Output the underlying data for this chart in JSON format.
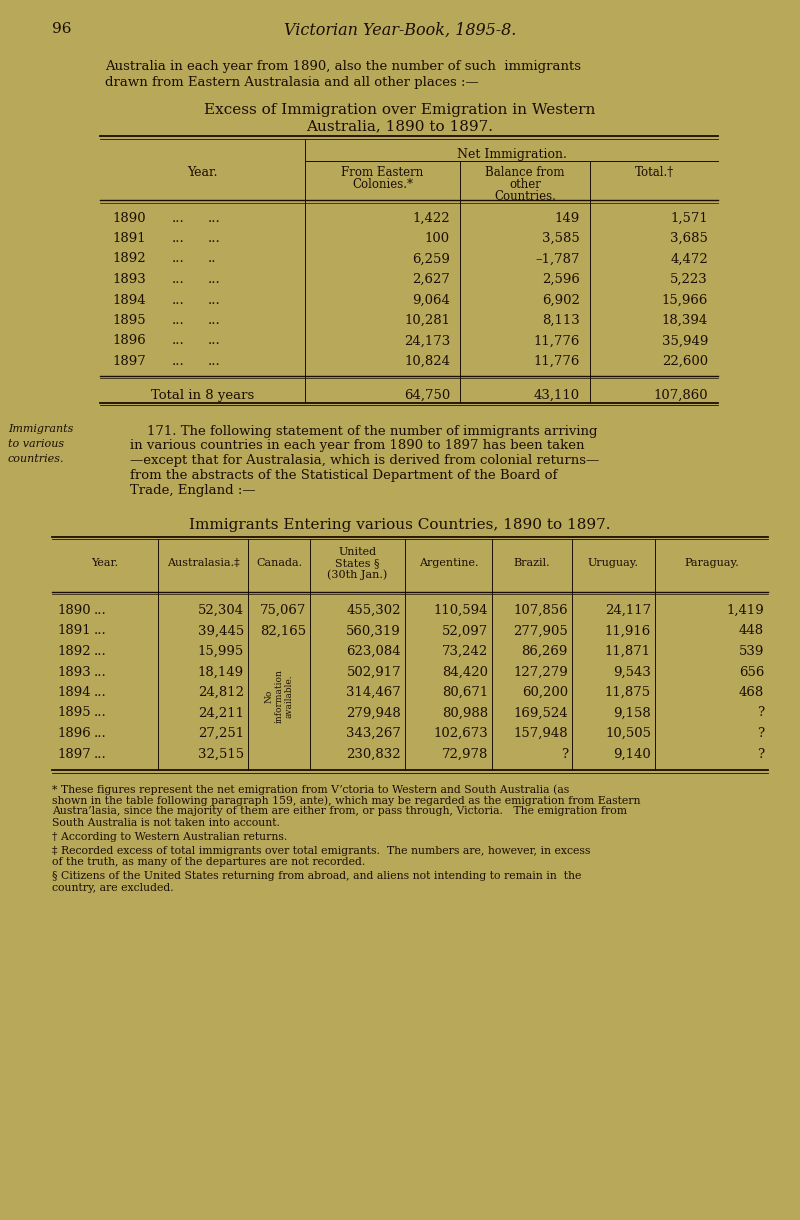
{
  "bg_color": "#b8a85a",
  "text_color": "#1a0e04",
  "page_number": "96",
  "page_header": "Victorian Year-Book, 1895-8.",
  "intro_text1": "Australia in each year from 1890, also the number of such  immigrants",
  "intro_text2": "drawn from Eastern Australasia and all other places :—",
  "table1_title_line1": "Excess of Immigration over Emigration in Western",
  "table1_title_line2": "Australia, 1890 to 1897.",
  "table1_net_header": "Net Immigration.",
  "table1_col2_header_l1": "From Eastern",
  "table1_col2_header_l2": "Colonies.*",
  "table1_col3_header_l1": "Balance from",
  "table1_col3_header_l2": "other",
  "table1_col3_header_l3": "Countries.",
  "table1_col4_header": "Total.†",
  "table1_year_header": "Year.",
  "table1_rows": [
    [
      "1890",
      "...",
      "...",
      "1,422",
      "149",
      "1,571"
    ],
    [
      "1891",
      "...",
      "...",
      "100",
      "3,585",
      "3,685"
    ],
    [
      "1892",
      "...",
      "..",
      "6,259",
      "–1,787",
      "4,472"
    ],
    [
      "1893",
      "...",
      "...",
      "2,627",
      "2,596",
      "5,223"
    ],
    [
      "1894",
      "...",
      "...",
      "9,064",
      "6,902",
      "15,966"
    ],
    [
      "1895",
      "...",
      "...",
      "10,281",
      "8,113",
      "18,394"
    ],
    [
      "1896",
      "...",
      "...",
      "24,173",
      "11,776",
      "35,949"
    ],
    [
      "1897",
      "...",
      "...",
      "10,824",
      "11,776",
      "22,600"
    ]
  ],
  "table1_total_label": "Total in 8 years",
  "table1_total_values": [
    "64,750",
    "43,110",
    "107,860"
  ],
  "para_margin_l1": "Immigrants",
  "para_margin_l2": "to various",
  "para_margin_l3": "countries.",
  "para_text_lines": [
    "    171. The following statement of the number of immigrants arriving",
    "in various countries in each year from 1890 to 1897 has been taken",
    "—except that for Australasia, which is derived from colonial returns—",
    "from the abstracts of the Statistical Department of the Board of",
    "Trade, England :—"
  ],
  "table2_title": "Immigrants Entering various Countries, 1890 to 1897.",
  "table2_col_h": [
    "Year.",
    "Australasia.‡",
    "Canada.",
    "United\nStates §\n(30th Jan.)",
    "Argentine.",
    "Brazil.",
    "Uruguay.",
    "Paraguay."
  ],
  "table2_rows": [
    [
      "1890",
      "...",
      "52,304",
      "75,067",
      "455,302",
      "110,594",
      "107,856",
      "24,117",
      "1,419"
    ],
    [
      "1891",
      "...",
      "39,445",
      "82,165",
      "560,319",
      "52,097",
      "277,905",
      "11,916",
      "448"
    ],
    [
      "1892",
      "...",
      "15,995",
      "",
      "623,084",
      "73,242",
      "86,269",
      "11,871",
      "539"
    ],
    [
      "1893",
      "...",
      "18,149",
      "",
      "502,917",
      "84,420",
      "127,279",
      "9,543",
      "656"
    ],
    [
      "1894",
      "...",
      "24,812",
      "",
      "314,467",
      "80,671",
      "60,200",
      "11,875",
      "468"
    ],
    [
      "1895",
      "...",
      "24,211",
      "",
      "279,948",
      "80,988",
      "169,524",
      "9,158",
      "?"
    ],
    [
      "1896",
      "...",
      "27,251",
      "",
      "343,267",
      "102,673",
      "157,948",
      "10,505",
      "?"
    ],
    [
      "1897",
      "...",
      "32,515",
      "",
      "230,832",
      "72,978",
      "?",
      "9,140",
      "?"
    ]
  ],
  "canada_rotated": "No\ninformation\navailable.",
  "fn1_lines": [
    "* These figures represent the net emigration from Vʼctoria to Western and South Australia (as",
    "shown in the table following paragraph 159, ante), which may be regarded as the emigration from Eastern",
    "Austra’lasia, since the majority of them are either from, or pass through, Victoria.   The emigration from",
    "South Australia is not taken into account."
  ],
  "fn2": "† According to Western Australian returns.",
  "fn3_lines": [
    "‡ Recorded excess of total immigrants over total emigrants.  The numbers are, however, in excess",
    "of the truth, as many of the departures are not recorded."
  ],
  "fn4_lines": [
    "§ Citizens of the United States returning from abroad, and aliens not intending to remain in  the",
    "country, are excluded."
  ]
}
